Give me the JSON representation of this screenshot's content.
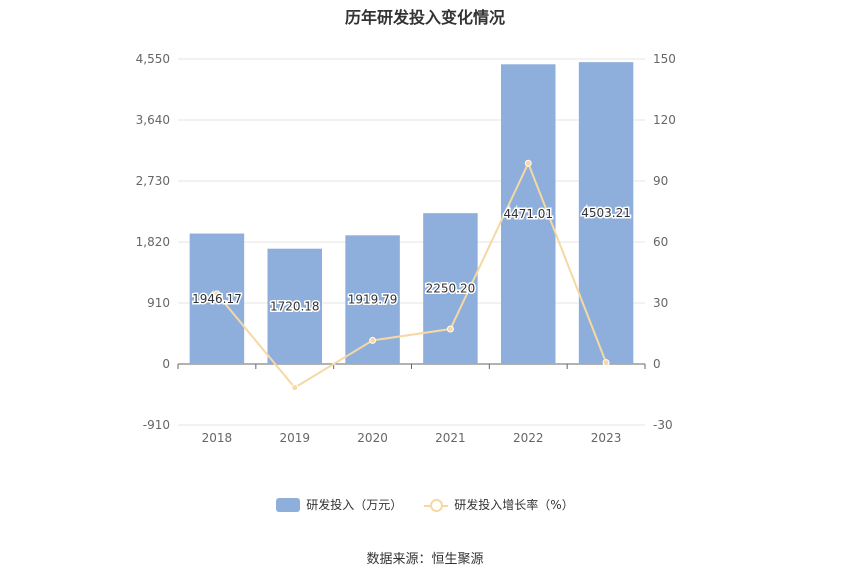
{
  "chart_data": {
    "type": "bar",
    "title": "历年研发投入变化情况",
    "categories": [
      "2018",
      "2019",
      "2020",
      "2021",
      "2022",
      "2023"
    ],
    "series": [
      {
        "name": "研发投入（万元）",
        "type": "bar",
        "axis": "left",
        "values": [
          1946.17,
          1720.18,
          1919.79,
          2250.2,
          4471.01,
          4503.21
        ],
        "labels": [
          "1946.17",
          "1720.18",
          "1919.79",
          "2250.20",
          "4471.01",
          "4503.21"
        ],
        "color": "#8eaedb"
      },
      {
        "name": "研发投入增长率（%）",
        "type": "line",
        "axis": "right",
        "values": [
          34.5,
          -11.6,
          11.6,
          17.2,
          98.7,
          0.7
        ],
        "color": "#f6d8a4"
      }
    ],
    "y_left": {
      "ylim": [
        -910,
        4550
      ],
      "ticks": [
        -910,
        0,
        910,
        1820,
        2730,
        3640,
        4550
      ],
      "tick_labels": [
        "-910",
        "0",
        "910",
        "1,820",
        "2,730",
        "3,640",
        "4,550"
      ]
    },
    "y_right": {
      "ylim": [
        -30,
        150
      ],
      "ticks": [
        -30,
        0,
        30,
        60,
        90,
        120,
        150
      ],
      "tick_labels": [
        "-30",
        "0",
        "30",
        "60",
        "90",
        "120",
        "150"
      ]
    },
    "grid": true,
    "legend_position": "bottom-center"
  },
  "legend": {
    "bar_label": "研发投入（万元）",
    "line_label": "研发投入增长率（%）"
  },
  "source": "数据来源：恒生聚源"
}
